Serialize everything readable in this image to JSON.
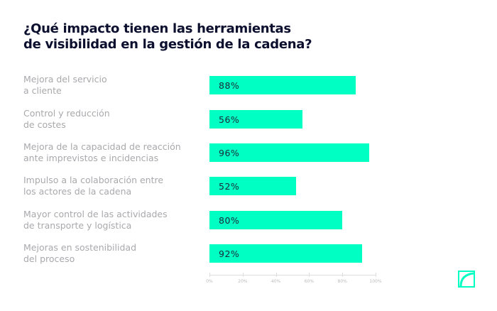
{
  "chart_data": {
    "type": "bar",
    "orientation": "horizontal",
    "title_lines": [
      "¿Qué impacto tienen las herramientas",
      "de visibilidad en la gestión de la cadena?"
    ],
    "categories": [
      [
        "Mejora del servicio",
        "a cliente"
      ],
      [
        "Control y reducción",
        "de costes"
      ],
      [
        "Mejora de la capacidad de reacción",
        "ante imprevistos e incidencias"
      ],
      [
        "Impulso a la colaboración entre",
        "los actores de la cadena"
      ],
      [
        "Mayor control de las actividades",
        "de transporte y logística"
      ],
      [
        "Mejoras en sostenibilidad",
        "del proceso"
      ]
    ],
    "values": [
      88,
      56,
      96,
      52,
      80,
      92
    ],
    "value_labels": [
      "88%",
      "56%",
      "96%",
      "52%",
      "80%",
      "92%"
    ],
    "xlim": [
      0,
      100
    ],
    "xticks": [
      "0%",
      "20%",
      "40%",
      "60%",
      "80%",
      "100%"
    ],
    "bar_color": "#00ffc2"
  }
}
